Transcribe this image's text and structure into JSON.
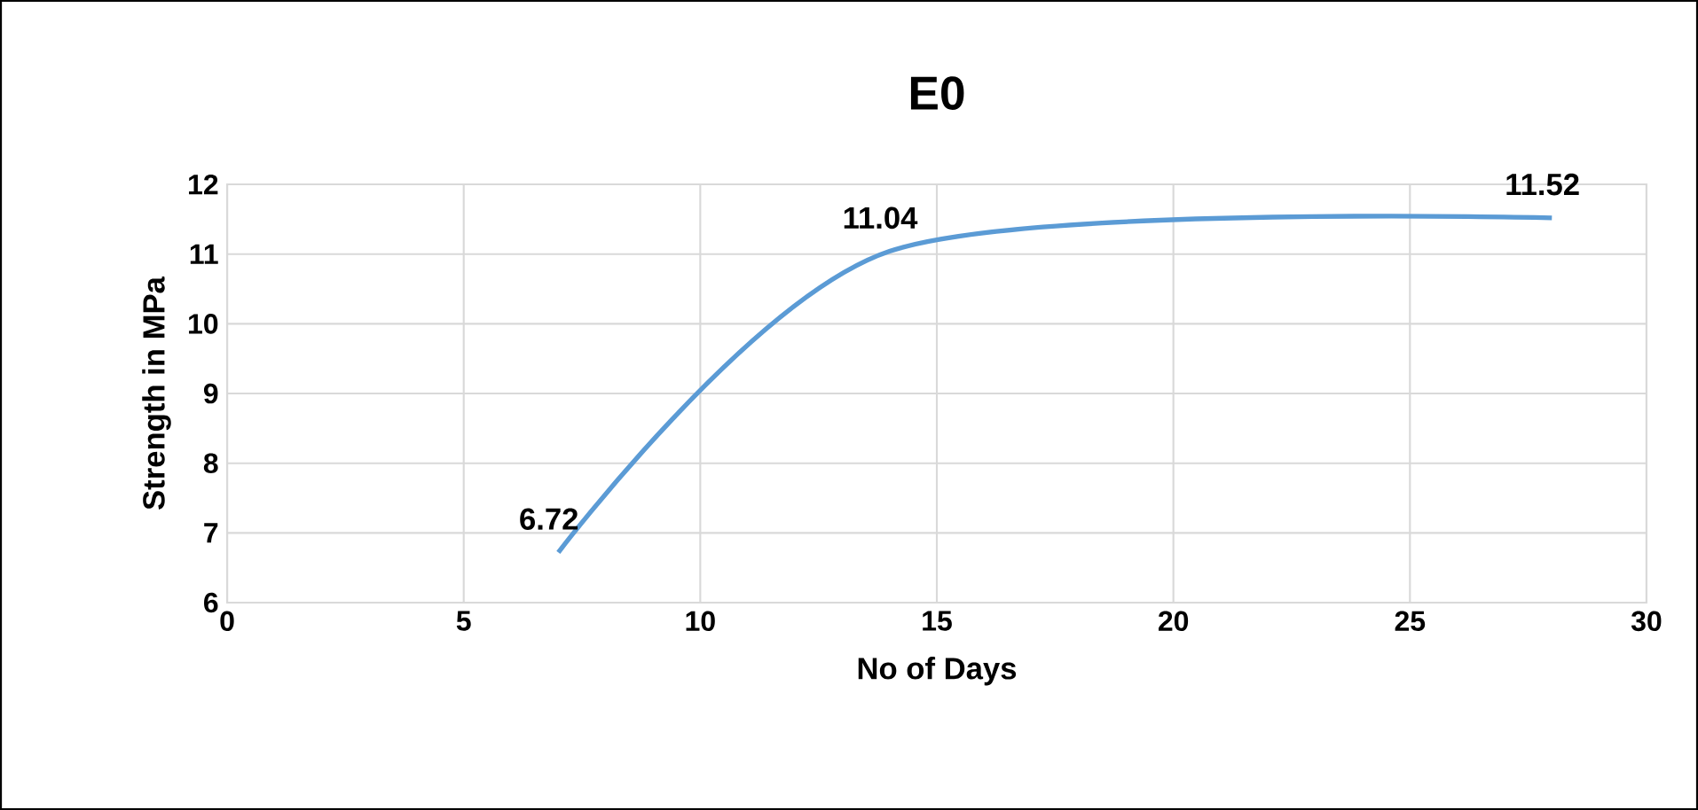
{
  "chart_data": {
    "type": "line",
    "title": "E0",
    "xlabel": "No of Days",
    "ylabel": "Strength in MPa",
    "x": [
      7,
      14,
      28
    ],
    "series": [
      {
        "color": "#5b9bd5",
        "values": [
          6.72,
          11.04,
          11.52
        ],
        "value_labels": [
          "6.72",
          "11.04",
          "11.52"
        ]
      }
    ],
    "xlim": [
      0,
      30
    ],
    "xticks": [
      0,
      5,
      10,
      15,
      20,
      25,
      30
    ],
    "ylim": [
      6,
      12
    ],
    "yticks": [
      6,
      7,
      8,
      9,
      10,
      11,
      12
    ],
    "grid": true,
    "marker": "none",
    "line_style": "solid"
  }
}
